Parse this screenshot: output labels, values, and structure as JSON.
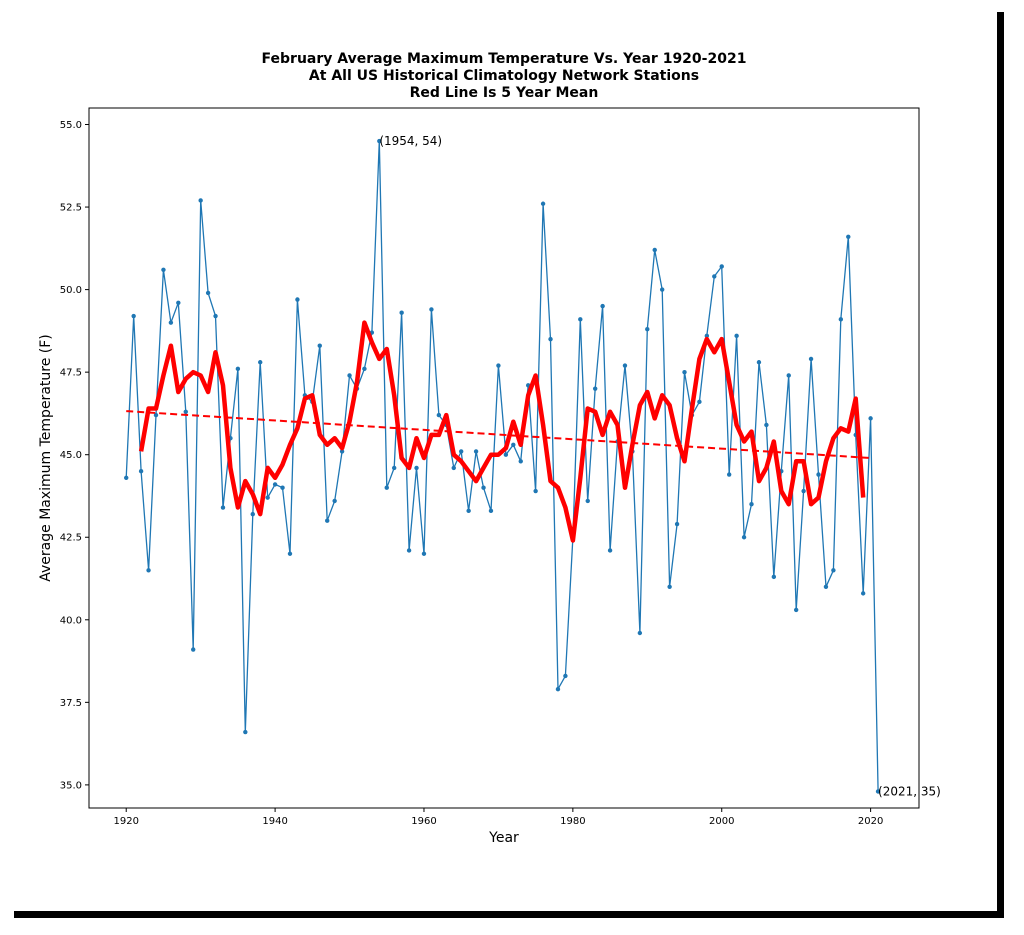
{
  "chart_data": {
    "type": "line",
    "title_lines": [
      "February Average Maximum Temperature Vs. Year 1920-2021",
      "At All US Historical Climatology Network Stations",
      "Red Line Is 5 Year Mean"
    ],
    "xlabel": "Year",
    "ylabel": "Average Maximum Temperature (F)",
    "xlim": [
      1915,
      2026.5
    ],
    "ylim": [
      34.3,
      55.5
    ],
    "xticks": [
      1920,
      1940,
      1960,
      1980,
      2000,
      2020
    ],
    "yticks": [
      35.0,
      37.5,
      40.0,
      42.5,
      45.0,
      47.5,
      50.0,
      52.5,
      55.0
    ],
    "grid": false,
    "series": [
      {
        "key": "annual",
        "color": "#1f77b4",
        "x": [
          1920,
          1921,
          1922,
          1923,
          1924,
          1925,
          1926,
          1927,
          1928,
          1929,
          1930,
          1931,
          1932,
          1933,
          1934,
          1935,
          1936,
          1937,
          1938,
          1939,
          1940,
          1941,
          1942,
          1943,
          1944,
          1945,
          1946,
          1947,
          1948,
          1949,
          1950,
          1951,
          1952,
          1953,
          1954,
          1955,
          1956,
          1957,
          1958,
          1959,
          1960,
          1961,
          1962,
          1963,
          1964,
          1965,
          1966,
          1967,
          1968,
          1969,
          1970,
          1971,
          1972,
          1973,
          1974,
          1975,
          1976,
          1977,
          1978,
          1979,
          1980,
          1981,
          1982,
          1983,
          1984,
          1985,
          1986,
          1987,
          1988,
          1989,
          1990,
          1991,
          1992,
          1993,
          1994,
          1995,
          1996,
          1997,
          1998,
          1999,
          2000,
          2001,
          2002,
          2003,
          2004,
          2005,
          2006,
          2007,
          2008,
          2009,
          2010,
          2011,
          2012,
          2013,
          2014,
          2015,
          2016,
          2017,
          2018,
          2019,
          2020,
          2021
        ],
        "y": [
          44.3,
          49.2,
          44.5,
          41.5,
          46.2,
          50.6,
          49.0,
          49.6,
          46.3,
          39.1,
          52.7,
          49.9,
          49.2,
          43.4,
          45.5,
          47.6,
          36.6,
          43.2,
          47.8,
          43.7,
          44.1,
          44.0,
          42.0,
          49.7,
          46.8,
          46.6,
          48.3,
          43.0,
          43.6,
          45.1,
          47.4,
          47.0,
          47.6,
          48.7,
          54.5,
          44.0,
          44.6,
          49.3,
          42.1,
          44.6,
          42.0,
          49.4,
          46.2,
          45.9,
          44.6,
          45.1,
          43.3,
          45.1,
          44.0,
          43.3,
          47.7,
          45.0,
          45.3,
          44.8,
          47.1,
          43.9,
          52.6,
          48.5,
          37.9,
          38.3,
          42.5,
          49.1,
          43.6,
          47.0,
          49.5,
          42.1,
          45.4,
          47.7,
          45.1,
          39.6,
          48.8,
          51.2,
          50.0,
          41.0,
          42.9,
          47.5,
          46.2,
          46.6,
          48.6,
          50.4,
          50.7,
          44.4,
          48.6,
          42.5,
          43.5,
          47.8,
          45.9,
          41.3,
          44.5,
          47.4,
          40.3,
          43.9,
          47.9,
          44.4,
          41.0,
          41.5,
          49.1,
          51.6,
          45.6,
          40.8,
          46.1,
          34.8
        ]
      },
      {
        "key": "five_year_mean",
        "color": "#ff0000",
        "x": [
          1922,
          1923,
          1924,
          1925,
          1926,
          1927,
          1928,
          1929,
          1930,
          1931,
          1932,
          1933,
          1934,
          1935,
          1936,
          1937,
          1938,
          1939,
          1940,
          1941,
          1942,
          1943,
          1944,
          1945,
          1946,
          1947,
          1948,
          1949,
          1950,
          1951,
          1952,
          1953,
          1954,
          1955,
          1956,
          1957,
          1958,
          1959,
          1960,
          1961,
          1962,
          1963,
          1964,
          1965,
          1966,
          1967,
          1968,
          1969,
          1970,
          1971,
          1972,
          1973,
          1974,
          1975,
          1976,
          1977,
          1978,
          1979,
          1980,
          1981,
          1982,
          1983,
          1984,
          1985,
          1986,
          1987,
          1988,
          1989,
          1990,
          1991,
          1992,
          1993,
          1994,
          1995,
          1996,
          1997,
          1998,
          1999,
          2000,
          2001,
          2002,
          2003,
          2004,
          2005,
          2006,
          2007,
          2008,
          2009,
          2010,
          2011,
          2012,
          2013,
          2014,
          2015,
          2016,
          2017,
          2018,
          2019
        ],
        "y": [
          45.1,
          46.4,
          46.4,
          47.4,
          48.3,
          46.9,
          47.3,
          47.5,
          47.4,
          46.9,
          48.1,
          47.1,
          44.6,
          43.4,
          44.2,
          43.8,
          43.2,
          44.6,
          44.3,
          44.7,
          45.3,
          45.8,
          46.7,
          46.8,
          45.6,
          45.3,
          45.5,
          45.2,
          46.0,
          47.2,
          49.0,
          48.4,
          47.9,
          48.2,
          46.8,
          44.9,
          44.6,
          45.5,
          44.9,
          45.6,
          45.6,
          46.2,
          45.0,
          44.8,
          44.5,
          44.2,
          44.6,
          45.0,
          45.0,
          45.2,
          46.0,
          45.3,
          46.8,
          47.4,
          45.9,
          44.2,
          44.0,
          43.4,
          42.4,
          44.3,
          46.4,
          46.3,
          45.6,
          46.3,
          45.9,
          44.0,
          45.3,
          46.5,
          46.9,
          46.1,
          46.8,
          46.5,
          45.5,
          44.8,
          46.4,
          47.9,
          48.5,
          48.1,
          48.5,
          47.2,
          45.9,
          45.4,
          45.7,
          44.2,
          44.6,
          45.4,
          43.9,
          43.5,
          44.8,
          44.8,
          43.5,
          43.7,
          44.8,
          45.5,
          45.8,
          45.7,
          46.7,
          43.7
        ]
      }
    ],
    "trend": {
      "x": [
        1920,
        2020
      ],
      "y": [
        46.32,
        44.9
      ],
      "color": "#ff0000",
      "style": "dashed"
    },
    "annotations": [
      {
        "text": "(1954, 54)",
        "x": 1954,
        "y": 54.5
      },
      {
        "text": "(2021, 35)",
        "x": 2021,
        "y": 34.8
      }
    ]
  }
}
